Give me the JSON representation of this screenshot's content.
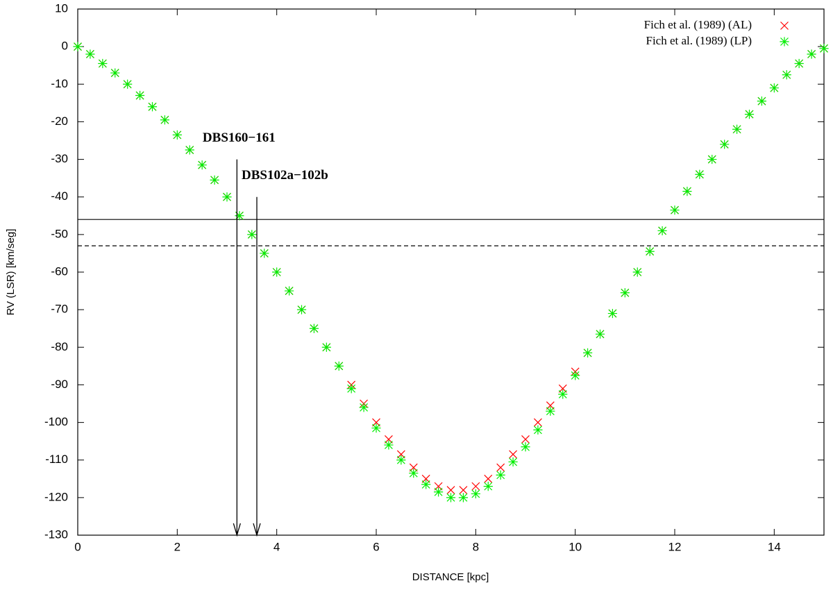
{
  "chart_data": {
    "type": "scatter",
    "xlabel": "DISTANCE [kpc]",
    "ylabel": "RV (LSR) [km/seg]",
    "xlim": [
      0,
      15
    ],
    "ylim": [
      -130,
      10
    ],
    "xticks": [
      0,
      2,
      4,
      6,
      8,
      10,
      12,
      14
    ],
    "yticks": [
      -130,
      -120,
      -110,
      -100,
      -90,
      -80,
      -70,
      -60,
      -50,
      -40,
      -30,
      -20,
      -10,
      0,
      10
    ],
    "legend": "upper right",
    "x": [
      0,
      0.25,
      0.5,
      0.75,
      1,
      1.25,
      1.5,
      1.75,
      2,
      2.25,
      2.5,
      2.75,
      3,
      3.25,
      3.5,
      3.75,
      4,
      4.25,
      4.5,
      4.75,
      5,
      5.25,
      5.5,
      5.75,
      6,
      6.25,
      6.5,
      6.75,
      7,
      7.25,
      7.5,
      7.75,
      8,
      8.25,
      8.5,
      8.75,
      9,
      9.25,
      9.5,
      9.75,
      10,
      10.25,
      10.5,
      10.75,
      11,
      11.25,
      11.5,
      11.75,
      12,
      12.25,
      12.5,
      12.75,
      13,
      13.25,
      13.5,
      13.75,
      14,
      14.25,
      14.5,
      14.75,
      15
    ],
    "series": [
      {
        "name": "Fich et al. (1989) (AL)",
        "color": "#ff0000",
        "marker": "x",
        "values": [
          0,
          -2,
          -4.5,
          -7,
          -10,
          -13,
          -16,
          -19.5,
          -23.5,
          -27.5,
          -31.5,
          -35.5,
          -40,
          -45,
          -50,
          -55,
          -60,
          -65,
          -70,
          -75,
          -80,
          -85,
          -90,
          -95,
          -100,
          -104.5,
          -108.5,
          -112,
          -115,
          -117,
          -118,
          -118,
          -117,
          -115,
          -112,
          -108.5,
          -104.5,
          -100,
          -95.5,
          -91,
          -86.5,
          -81.5,
          -76.5,
          -71,
          -65.5,
          -60,
          -54.5,
          -49,
          -43.5,
          -38.5,
          -34,
          -30,
          -26,
          -22,
          -18,
          -14.5,
          -11,
          -7.5,
          -4.5,
          -2,
          -0.5
        ]
      },
      {
        "name": "Fich et al. (1989) (LP)",
        "color": "#00ee00",
        "marker": "asterisk",
        "values": [
          0,
          -2,
          -4.5,
          -7,
          -10,
          -13,
          -16,
          -19.5,
          -23.5,
          -27.5,
          -31.5,
          -35.5,
          -40,
          -45,
          -50,
          -55,
          -60,
          -65,
          -70,
          -75,
          -80,
          -85,
          -91,
          -96,
          -101.5,
          -106,
          -110,
          -113.5,
          -116.5,
          -118.5,
          -120,
          -120,
          -119,
          -117,
          -114,
          -110.5,
          -106.5,
          -102,
          -97,
          -92.5,
          -87.5,
          -81.5,
          -76.5,
          -71,
          -65.5,
          -60,
          -54.5,
          -49,
          -43.5,
          -38.5,
          -34,
          -30,
          -26,
          -22,
          -18,
          -14.5,
          -11,
          -7.5,
          -4.5,
          -2,
          -0.5
        ]
      }
    ],
    "hlines": [
      {
        "y": -46,
        "style": "solid"
      },
      {
        "y": -53,
        "style": "dashed"
      }
    ],
    "annotations": [
      {
        "text": "DBS160−161",
        "x": 3.2,
        "y_start": -30,
        "y_end": -130
      },
      {
        "text": "DBS102a−102b",
        "x": 3.6,
        "y_start": -40,
        "y_end": -130
      }
    ]
  }
}
